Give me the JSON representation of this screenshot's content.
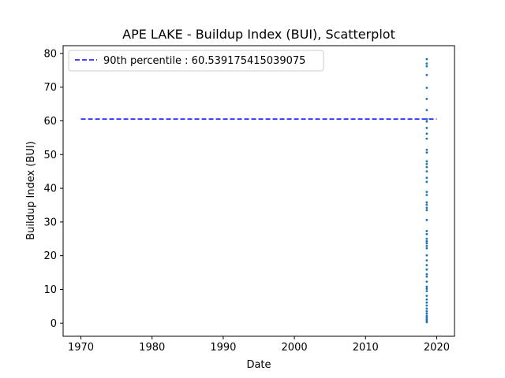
{
  "chart_data": {
    "type": "scatter",
    "title": "APE LAKE - Buildup Index (BUI), Scatterplot",
    "xlabel": "Date",
    "ylabel": "Buildup Index (BUI)",
    "x_axis_kind": "year",
    "xlim": [
      1967.5,
      2022.5
    ],
    "ylim": [
      -3.9,
      82.3
    ],
    "xticks": [
      1970,
      1980,
      1990,
      2000,
      2010,
      2020
    ],
    "yticks": [
      0,
      10,
      20,
      30,
      40,
      50,
      60,
      70,
      80
    ],
    "grid": false,
    "legend_position": "top-left",
    "reference_line": {
      "label": "90th percentile : 60.539175415039075",
      "value": 60.539175415039075,
      "x_range": [
        1970,
        2020
      ],
      "color": "#0000ff",
      "style": "dashed"
    },
    "series": [
      {
        "color": "#1f77b4",
        "marker_size_pt": 2,
        "points": [
          [
            2018.6,
            78.3
          ],
          [
            2018.6,
            77.0
          ],
          [
            2018.6,
            76.2
          ],
          [
            2018.6,
            73.6
          ],
          [
            2018.6,
            69.8
          ],
          [
            2018.6,
            66.5
          ],
          [
            2018.6,
            63.2
          ],
          [
            2018.6,
            60.5
          ],
          [
            2018.6,
            59.8
          ],
          [
            2018.6,
            57.9
          ],
          [
            2018.6,
            56.2
          ],
          [
            2018.6,
            54.7
          ],
          [
            2018.6,
            51.4
          ],
          [
            2018.6,
            50.6
          ],
          [
            2018.6,
            48.0
          ],
          [
            2018.6,
            47.2
          ],
          [
            2018.6,
            46.3
          ],
          [
            2018.6,
            45.0
          ],
          [
            2018.6,
            43.1
          ],
          [
            2018.6,
            41.9
          ],
          [
            2018.6,
            38.9
          ],
          [
            2018.6,
            38.0
          ],
          [
            2018.6,
            35.8
          ],
          [
            2018.6,
            35.1
          ],
          [
            2018.6,
            34.2
          ],
          [
            2018.6,
            33.5
          ],
          [
            2018.6,
            30.6
          ],
          [
            2018.6,
            27.3
          ],
          [
            2018.6,
            26.4
          ],
          [
            2018.6,
            25.0
          ],
          [
            2018.6,
            24.3
          ],
          [
            2018.6,
            23.7
          ],
          [
            2018.6,
            22.9
          ],
          [
            2018.6,
            22.2
          ],
          [
            2018.6,
            20.1
          ],
          [
            2018.6,
            18.6
          ],
          [
            2018.6,
            17.2
          ],
          [
            2018.6,
            15.9
          ],
          [
            2018.6,
            14.5
          ],
          [
            2018.6,
            13.8
          ],
          [
            2018.6,
            12.3
          ],
          [
            2018.6,
            10.8
          ],
          [
            2018.6,
            10.2
          ],
          [
            2018.6,
            9.5
          ],
          [
            2018.6,
            8.1
          ],
          [
            2018.6,
            7.0
          ],
          [
            2018.6,
            6.1
          ],
          [
            2018.6,
            5.2
          ],
          [
            2018.6,
            4.3
          ],
          [
            2018.6,
            3.5
          ],
          [
            2018.6,
            2.8
          ],
          [
            2018.6,
            2.1
          ],
          [
            2018.6,
            1.6
          ],
          [
            2018.6,
            1.1
          ],
          [
            2018.6,
            0.7
          ],
          [
            2018.6,
            0.3
          ]
        ]
      }
    ]
  }
}
